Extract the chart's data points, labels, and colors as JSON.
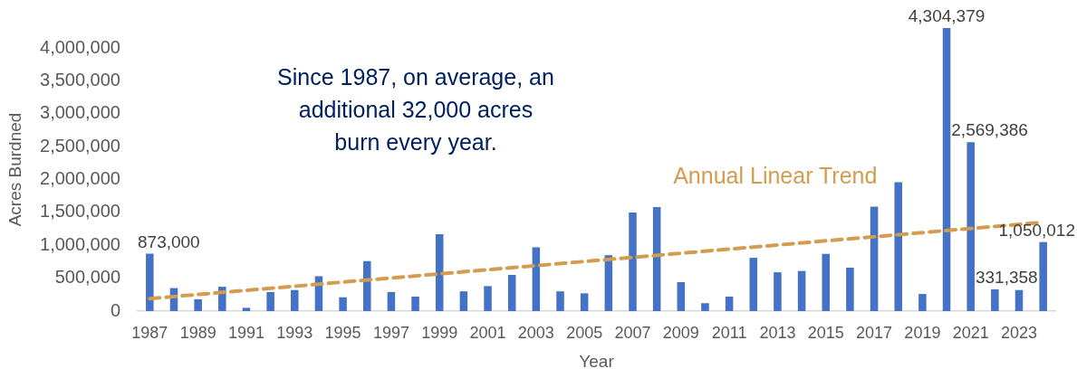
{
  "chart_data": {
    "type": "bar",
    "xlabel": "Year",
    "ylabel": "Acres Burdned",
    "x": [
      1987,
      1988,
      1989,
      1990,
      1991,
      1992,
      1993,
      1994,
      1995,
      1996,
      1997,
      1998,
      1999,
      2000,
      2001,
      2002,
      2003,
      2004,
      2005,
      2006,
      2007,
      2008,
      2009,
      2010,
      2011,
      2012,
      2013,
      2014,
      2015,
      2016,
      2017,
      2018,
      2019,
      2020,
      2021,
      2022,
      2023,
      2024
    ],
    "xlim": [
      1986.5,
      2024.5
    ],
    "xticks": [
      1987,
      1989,
      1991,
      1993,
      1995,
      1997,
      1999,
      2001,
      2003,
      2005,
      2007,
      2009,
      2011,
      2013,
      2015,
      2017,
      2019,
      2021,
      2023
    ],
    "ylim": [
      0,
      4304379
    ],
    "yticks": [
      0,
      {
        "value": 500000,
        "label": "500,000"
      },
      {
        "value": 1000000,
        "label": "1,000,000"
      },
      {
        "value": 1500000,
        "label": "1,500,000"
      },
      {
        "value": 2000000,
        "label": "2,000,000"
      },
      {
        "value": 2500000,
        "label": "2,500,000"
      },
      {
        "value": 3000000,
        "label": "3,000,000"
      },
      {
        "value": 3500000,
        "label": "3,500,000"
      },
      {
        "value": 4000000,
        "label": "4,000,000"
      }
    ],
    "series": [
      {
        "color": "#4472c4",
        "values": [
          873000,
          350000,
          180000,
          370000,
          50000,
          290000,
          320000,
          530000,
          210000,
          760000,
          290000,
          220000,
          1170000,
          300000,
          380000,
          550000,
          970000,
          300000,
          270000,
          850000,
          1500000,
          1580000,
          440000,
          120000,
          220000,
          810000,
          590000,
          610000,
          870000,
          660000,
          1590000,
          1960000,
          260000,
          4304379,
          2569386,
          331358,
          320000,
          1050012
        ],
        "value_labels": [
          "873,000",
          null,
          null,
          null,
          null,
          null,
          null,
          null,
          null,
          null,
          null,
          null,
          null,
          null,
          null,
          null,
          null,
          null,
          null,
          null,
          null,
          null,
          null,
          null,
          null,
          null,
          null,
          null,
          null,
          null,
          null,
          null,
          null,
          "4,304,379",
          "2,569,386",
          "331,358",
          null,
          "1,050,012"
        ]
      },
      {
        "type": "line",
        "name": "Annual Linear Trend",
        "color": "#d39c50",
        "x": [
          1987,
          2024
        ],
        "values": [
          190000,
          1350000
        ],
        "line_style": "dashed"
      }
    ],
    "annotations": [
      "Since 1987, on average, an\nadditional 32,000 acres\nburn every year."
    ],
    "grid": false,
    "legend": false
  }
}
